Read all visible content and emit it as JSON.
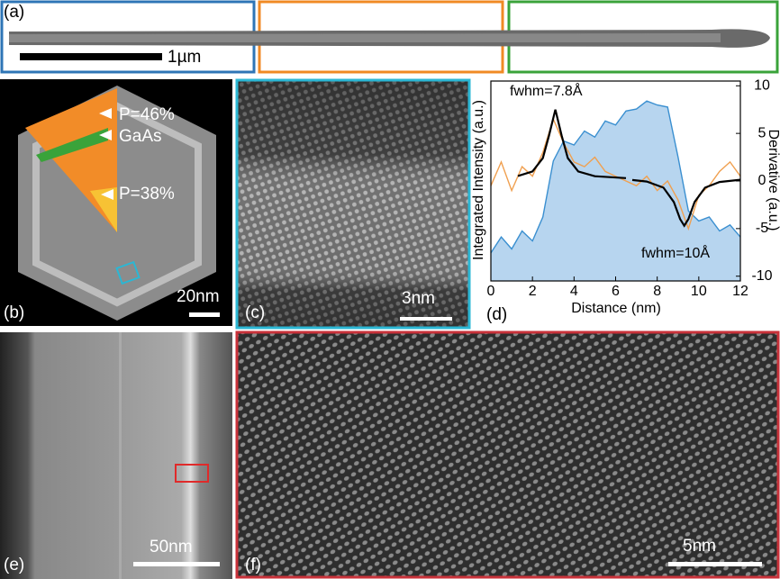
{
  "panels": {
    "a": {
      "label": "(a)",
      "scale": "1µm"
    },
    "b": {
      "label": "(b)",
      "scale": "20nm",
      "annotations": [
        "P=46%",
        "GaAs",
        "P=38%"
      ]
    },
    "c": {
      "label": "(c)",
      "scale": "3nm"
    },
    "e": {
      "label": "(e)",
      "scale": "50nm"
    },
    "f": {
      "label": "(f)",
      "scale": "5nm"
    }
  },
  "chart_data": {
    "type": "line",
    "label": "(d)",
    "xlabel": "Distance (nm)",
    "ylabel": "Integrated Intensity (a.u.)",
    "y2label": "Derivative (a.u.)",
    "annotations": [
      "fwhm=7.8Å",
      "fwhm=10Å"
    ],
    "xlim": [
      0,
      12
    ],
    "xticks": [
      0,
      2,
      4,
      6,
      8,
      10,
      12
    ],
    "ylim": [
      0,
      1
    ],
    "y2lim": [
      -10.5,
      10.5
    ],
    "y2ticks": [
      -10,
      -5,
      0,
      5,
      10
    ],
    "series": [
      {
        "name": "Integrated Intensity",
        "color": "#3a8fd0",
        "fill": "#b7d5ef",
        "area": true,
        "x": [
          0,
          0.5,
          1,
          1.5,
          2,
          2.5,
          3,
          3.5,
          4,
          4.5,
          5,
          5.5,
          6,
          6.5,
          7,
          7.5,
          8,
          8.5,
          9,
          9.5,
          10,
          10.5,
          11,
          11.5,
          12
        ],
        "values": [
          0.14,
          0.22,
          0.16,
          0.25,
          0.2,
          0.32,
          0.6,
          0.7,
          0.68,
          0.75,
          0.72,
          0.8,
          0.78,
          0.85,
          0.86,
          0.9,
          0.88,
          0.87,
          0.62,
          0.35,
          0.3,
          0.32,
          0.25,
          0.28,
          0.22
        ]
      },
      {
        "name": "Derivative",
        "color": "#f0a050",
        "axis": "y2",
        "x": [
          0,
          0.5,
          1,
          1.5,
          2,
          2.5,
          3,
          3.5,
          4,
          4.5,
          5,
          5.5,
          6,
          6.5,
          7,
          7.5,
          8,
          8.5,
          9,
          9.5,
          10,
          10.5,
          11,
          11.5,
          12
        ],
        "values": [
          -0.5,
          2,
          -1,
          1.5,
          0.5,
          3,
          6.5,
          4,
          2,
          1.5,
          2.5,
          1,
          0.5,
          0,
          -0.5,
          0.5,
          -1,
          0,
          -2,
          -5,
          -1.5,
          -0.5,
          1,
          2,
          0.5
        ]
      },
      {
        "name": "Fit 1",
        "color": "#000000",
        "axis": "y2",
        "x": [
          1.3,
          2,
          2.5,
          2.8,
          3.1,
          3.4,
          3.7,
          4.2,
          5,
          6.5
        ],
        "values": [
          0.53,
          1.0,
          2.4,
          4.8,
          7.5,
          4.8,
          2.4,
          1.0,
          0.5,
          0.3
        ]
      },
      {
        "name": "Fit 2",
        "color": "#000000",
        "axis": "y2",
        "x": [
          6.8,
          7.5,
          8.3,
          8.8,
          9.1,
          9.3,
          9.5,
          9.8,
          10.3,
          11,
          12
        ],
        "values": [
          0.1,
          -0.06,
          -0.7,
          -2.2,
          -4.0,
          -4.7,
          -4.0,
          -2.2,
          -0.7,
          -0.1,
          0.13
        ]
      }
    ]
  }
}
